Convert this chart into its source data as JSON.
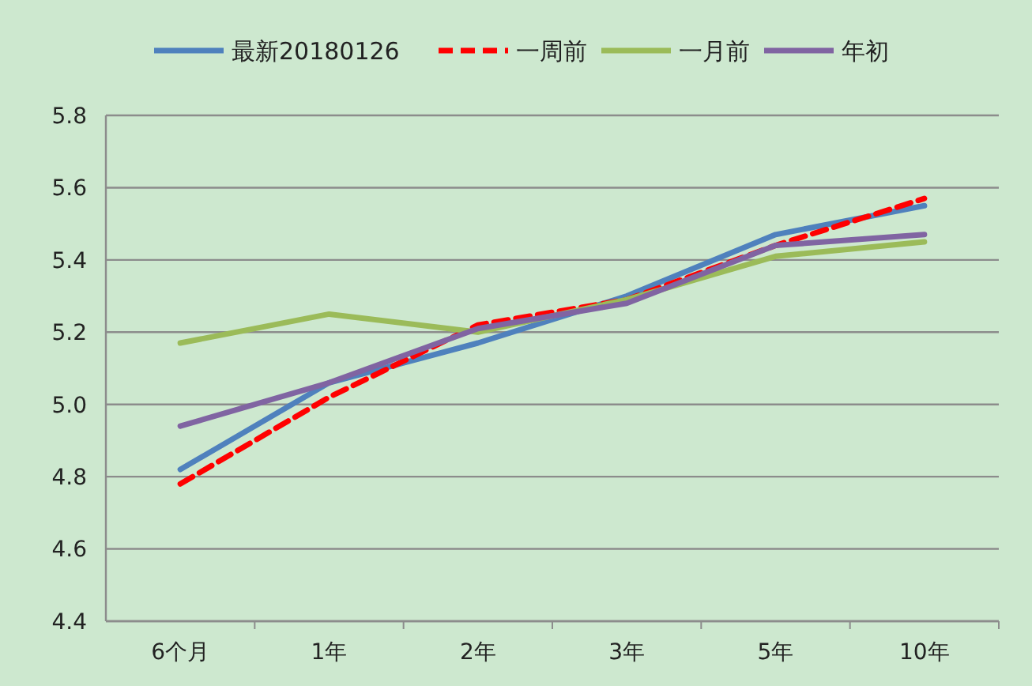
{
  "chart_data": {
    "type": "line",
    "categories": [
      "6个月",
      "1年",
      "2年",
      "3年",
      "5年",
      "10年"
    ],
    "series": [
      {
        "name": "最新20180126",
        "color": "#4f81bd",
        "values": [
          4.82,
          5.06,
          5.17,
          5.3,
          5.47,
          5.55
        ]
      },
      {
        "name": "一周前",
        "color": "#ff0000",
        "line_style": "dashed",
        "values": [
          4.78,
          5.02,
          5.22,
          5.29,
          5.44,
          5.57
        ]
      },
      {
        "name": "一月前",
        "color": "#9bbb59",
        "values": [
          5.17,
          5.25,
          5.2,
          5.29,
          5.41,
          5.45
        ]
      },
      {
        "name": "年初",
        "color": "#8064a2",
        "values": [
          4.94,
          5.06,
          5.21,
          5.28,
          5.44,
          5.47
        ]
      }
    ],
    "ylim": [
      4.4,
      5.8
    ],
    "yticks": [
      4.4,
      4.6,
      4.8,
      {
        "value": 5,
        "label": "5.0"
      },
      5.2,
      5.4,
      5.6,
      5.8
    ],
    "grid": "y",
    "legend": "top",
    "marker": "none",
    "line_style": "solid"
  }
}
